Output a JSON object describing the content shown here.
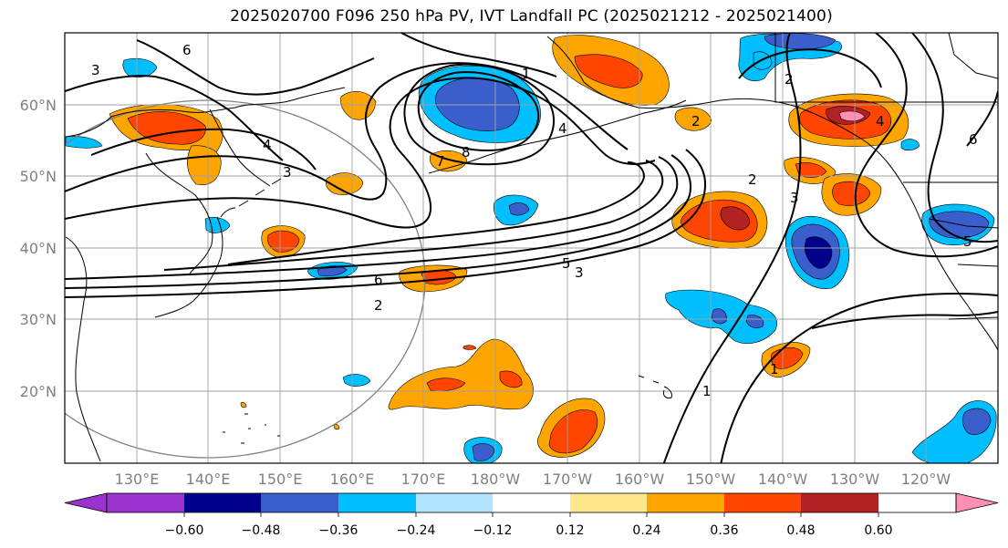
{
  "title": "2025020700 F096 250 hPa PV, IVT Landfall PC (2025021212 - 2025021400)",
  "lat_labels": [
    "60°N",
    "50°N",
    "40°N",
    "30°N",
    "20°N"
  ],
  "lon_labels": [
    "130°E",
    "140°E",
    "150°E",
    "160°E",
    "170°E",
    "180°W",
    "170°W",
    "160°W",
    "150°W",
    "140°W",
    "130°W",
    "120°W"
  ],
  "colorbar": {
    "ticks": [
      "−0.60",
      "−0.48",
      "−0.36",
      "−0.24",
      "−0.12",
      "0.12",
      "0.24",
      "0.36",
      "0.48",
      "0.60"
    ],
    "colors": [
      "#9a32cd",
      "#00008b",
      "#3a5fcd",
      "#00bfff",
      "#b2e3ff",
      "#ffffff",
      "#ffe88c",
      "#ffa500",
      "#ff4500",
      "#b22222",
      "#ff8fb4"
    ]
  },
  "contour_labels": [
    "6",
    "3",
    "4",
    "3",
    "2",
    "7",
    "8",
    "4",
    "1",
    "6",
    "5",
    "3",
    "2",
    "2",
    "3",
    "1",
    "1",
    "2",
    "4",
    "6",
    "5"
  ]
}
